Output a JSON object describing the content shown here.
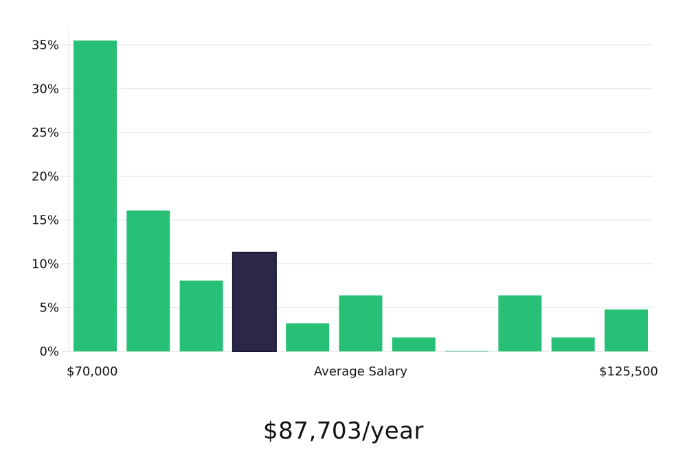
{
  "chart_data": {
    "type": "bar",
    "xlabel": "Average Salary",
    "x_min_label": "$70,000",
    "x_max_label": "$125,500",
    "ylim": [
      0,
      37
    ],
    "yticks": [
      "0%",
      "5%",
      "10%",
      "15%",
      "20%",
      "25%",
      "30%",
      "35%"
    ],
    "ytick_values": [
      0,
      5,
      10,
      15,
      20,
      25,
      30,
      35
    ],
    "grid": true,
    "values": [
      35.5,
      16.1,
      8.1,
      11.3,
      3.2,
      6.4,
      1.6,
      0.05,
      6.4,
      1.6,
      4.8
    ],
    "highlight_index": 3,
    "colors": {
      "bar": "#28c076",
      "highlight": "#2a2748",
      "highlight_border": "#1a1836"
    }
  },
  "summary": {
    "salary": "$87,703/year"
  }
}
